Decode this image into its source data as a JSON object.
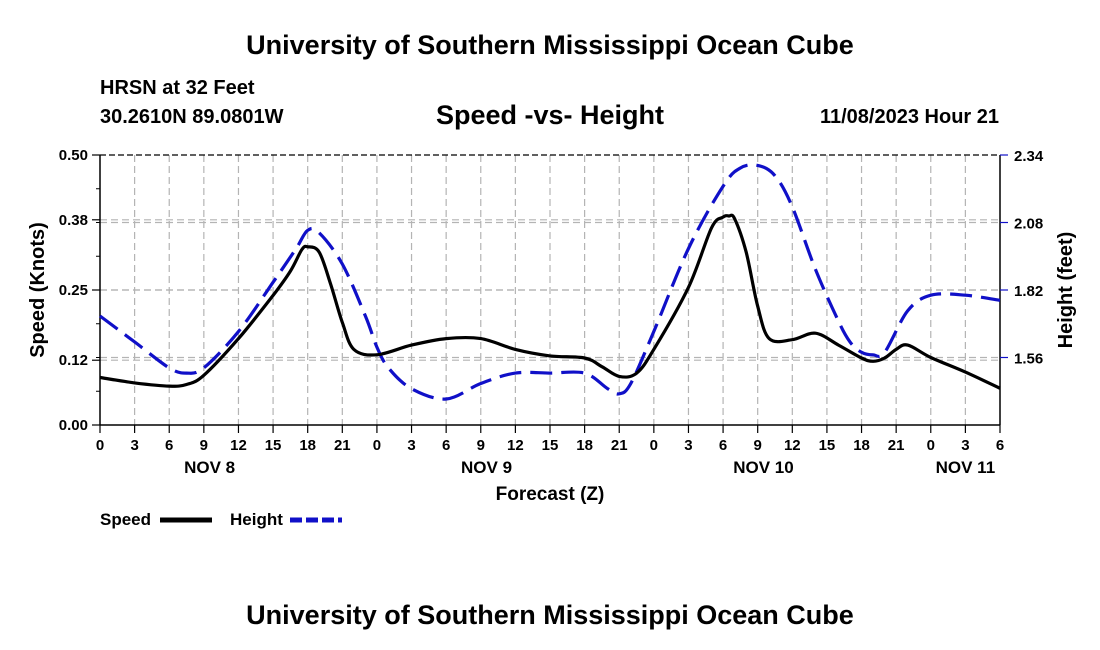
{
  "header": {
    "title": "University of Southern Mississippi Ocean Cube",
    "station": "HRSN at 32 Feet",
    "coordinates": "30.2610N  89.0801W",
    "subtitle": "Speed -vs- Height",
    "datetime": "11/08/2023 Hour 21",
    "footer_title": "University of Southern Mississippi Ocean Cube"
  },
  "chart_data": {
    "type": "line",
    "xlabel": "Forecast (Z)",
    "ylabel": "Speed (Knots)",
    "y2label": "Height (feet)",
    "x_range_hours": [
      0,
      78
    ],
    "ylim": [
      0,
      0.5
    ],
    "y2lim": [
      1.3,
      2.34
    ],
    "y_ticks": [
      "0.00",
      "0.12",
      "0.25",
      "0.38",
      "0.50"
    ],
    "y2_ticks": [
      "1.56",
      "1.82",
      "2.08",
      "2.34"
    ],
    "y2_tick_values": [
      1.56,
      1.82,
      2.08,
      2.34
    ],
    "x_tick_labels": [
      "0",
      "3",
      "6",
      "9",
      "12",
      "15",
      "18",
      "21",
      "0",
      "3",
      "6",
      "9",
      "12",
      "15",
      "18",
      "21",
      "0",
      "3",
      "6",
      "9",
      "12",
      "15",
      "18",
      "21",
      "0",
      "3",
      "6"
    ],
    "day_labels": [
      {
        "label": "NOV 8",
        "hour": 9.5
      },
      {
        "label": "NOV 9",
        "hour": 33.5
      },
      {
        "label": "NOV 10",
        "hour": 57.5
      },
      {
        "label": "NOV 11",
        "hour": 75
      }
    ],
    "grid": true,
    "legend": {
      "position": "bottom-left",
      "speed_label": "Speed",
      "height_label": "Height"
    },
    "colors": {
      "speed": "#000000",
      "height": "#1010c8",
      "grid": "#b4b4b4"
    },
    "series": [
      {
        "name": "Speed",
        "axis": "left",
        "x": [
          0,
          3,
          6,
          7.5,
          9,
          12,
          15,
          16.5,
          17.5,
          18,
          19,
          20,
          21,
          22,
          24,
          27,
          30,
          33,
          36,
          39,
          42,
          43.5,
          45,
          46.5,
          48,
          51,
          53,
          54,
          54.5,
          55,
          56,
          57,
          58,
          60,
          62,
          64,
          66,
          67,
          68,
          69,
          70,
          72,
          75,
          78
        ],
        "values": [
          0.088,
          0.078,
          0.072,
          0.075,
          0.092,
          0.16,
          0.24,
          0.285,
          0.325,
          0.33,
          0.32,
          0.26,
          0.19,
          0.14,
          0.13,
          0.148,
          0.16,
          0.16,
          0.14,
          0.128,
          0.124,
          0.108,
          0.09,
          0.096,
          0.14,
          0.255,
          0.365,
          0.385,
          0.387,
          0.382,
          0.32,
          0.22,
          0.16,
          0.158,
          0.17,
          0.148,
          0.124,
          0.118,
          0.124,
          0.14,
          0.148,
          0.125,
          0.098,
          0.068
        ]
      },
      {
        "name": "Height",
        "axis": "right",
        "x": [
          0,
          3,
          6,
          7.5,
          9,
          12,
          15,
          17,
          18,
          19,
          21,
          23,
          24,
          25,
          27,
          30,
          33,
          36,
          39,
          42,
          44,
          45,
          46,
          48,
          51,
          54,
          55.5,
          57,
          58.5,
          60,
          62,
          64,
          65,
          66,
          67,
          68,
          70,
          72,
          75,
          78
        ],
        "values": [
          1.72,
          1.62,
          1.52,
          1.5,
          1.52,
          1.66,
          1.85,
          1.98,
          2.05,
          2.04,
          1.92,
          1.72,
          1.6,
          1.52,
          1.44,
          1.4,
          1.46,
          1.5,
          1.5,
          1.5,
          1.44,
          1.42,
          1.46,
          1.66,
          1.98,
          2.22,
          2.29,
          2.3,
          2.26,
          2.14,
          1.9,
          1.7,
          1.62,
          1.58,
          1.57,
          1.58,
          1.74,
          1.8,
          1.8,
          1.78
        ]
      }
    ]
  }
}
